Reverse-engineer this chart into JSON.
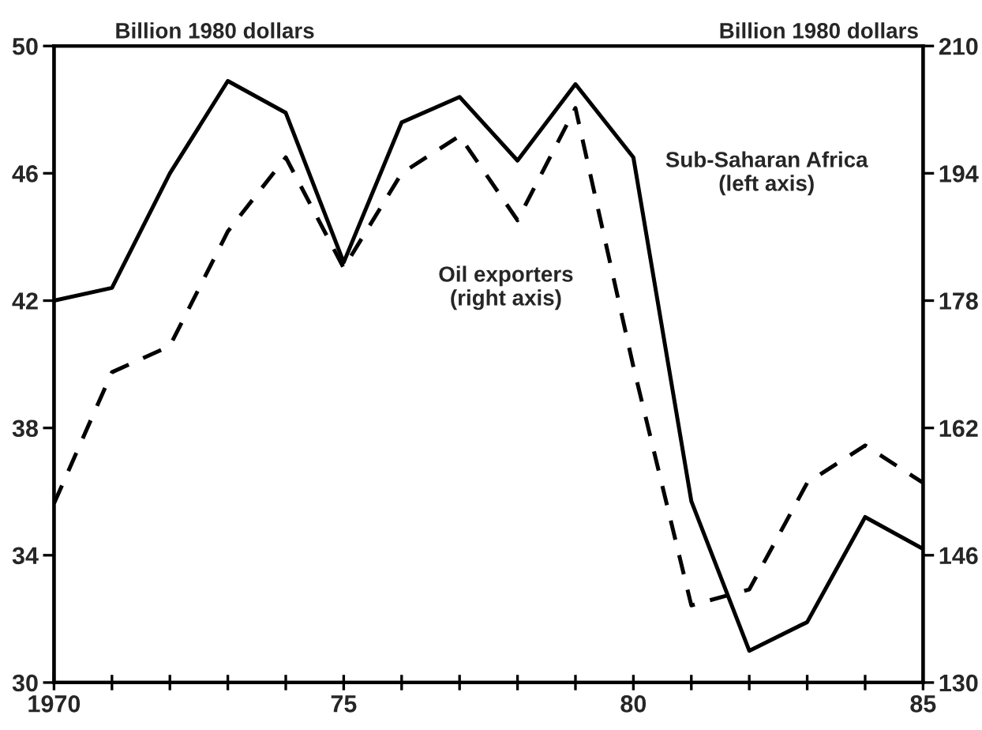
{
  "chart_data": {
    "type": "line",
    "x": [
      1970,
      1971,
      1972,
      1973,
      1974,
      1975,
      1976,
      1977,
      1978,
      1979,
      1980,
      1981,
      1982,
      1983,
      1984,
      1985
    ],
    "series": [
      {
        "name": "Sub-Saharan Africa\n(left axis)",
        "color": "#000000",
        "line_style": "solid",
        "values": [
          42.0,
          42.4,
          46.0,
          48.9,
          47.9,
          43.2,
          47.6,
          48.4,
          46.4,
          48.8,
          46.5,
          35.7,
          31.0,
          31.9,
          35.2,
          34.2
        ]
      },
      {
        "name": "Oil exporters\n(right axis)",
        "color": "#000000",
        "line_style": "dashed",
        "axis": "y2",
        "values": [
          152.5,
          169.0,
          172.3,
          186.7,
          196.0,
          182.1,
          194.0,
          198.7,
          188.1,
          202.2,
          169.7,
          139.7,
          141.7,
          155.1,
          159.8,
          155.1
        ]
      }
    ],
    "ylabel": "Billion 1980 dollars",
    "y2label": "Billion 1980 dollars",
    "xlim": [
      1970,
      1985
    ],
    "xticks": [
      {
        "value": 1970,
        "label": "1970"
      },
      {
        "value": 1971,
        "label": null
      },
      {
        "value": 1972,
        "label": null
      },
      {
        "value": 1973,
        "label": null
      },
      {
        "value": 1974,
        "label": null
      },
      {
        "value": 1975,
        "label": "75"
      },
      {
        "value": 1976,
        "label": null
      },
      {
        "value": 1977,
        "label": null
      },
      {
        "value": 1978,
        "label": null
      },
      {
        "value": 1979,
        "label": null
      },
      {
        "value": 1980,
        "label": "80"
      },
      {
        "value": 1981,
        "label": null
      },
      {
        "value": 1982,
        "label": null
      },
      {
        "value": 1983,
        "label": null
      },
      {
        "value": 1984,
        "label": null
      },
      {
        "value": 1985,
        "label": "85"
      }
    ],
    "ylim": [
      30,
      50
    ],
    "yticks": [
      30,
      34,
      38,
      42,
      46,
      50
    ],
    "y2lim": [
      130,
      210
    ],
    "y2ticks": [
      130,
      146,
      162,
      178,
      194,
      210
    ],
    "grid": false,
    "legend": false,
    "marker": "none"
  }
}
